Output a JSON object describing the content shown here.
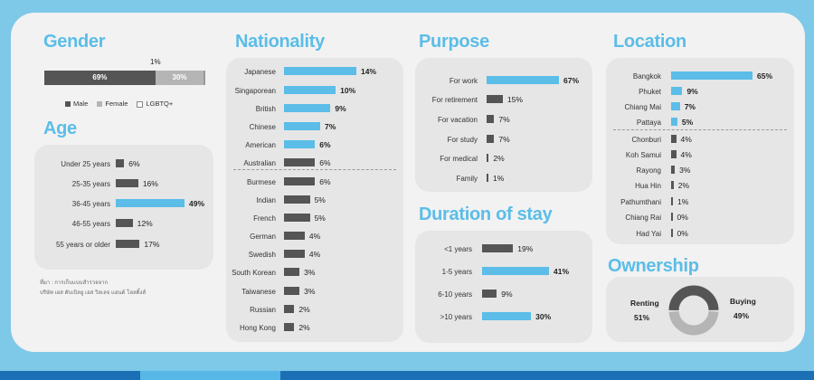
{
  "colors": {
    "blue": "#5bbde8",
    "gray": "#555555",
    "light": "#b5b5b5"
  },
  "gender": {
    "title": "Gender",
    "top_label": "1%",
    "legend": [
      "Male",
      "Female",
      "LGBTQ+"
    ]
  },
  "age": {
    "title": "Age"
  },
  "nationality": {
    "title": "Nationality"
  },
  "purpose": {
    "title": "Purpose"
  },
  "duration": {
    "title": "Duration of stay"
  },
  "location": {
    "title": "Location"
  },
  "ownership": {
    "title": "Ownership"
  },
  "source_note": [
    "ที่มา : การเก็บแบบสำรวจจาก",
    "บริษัท เอส ดับเบิลยู เอส วิลเลจ แอนด์ โฮลดิ้งส์"
  ],
  "chart_data": [
    {
      "id": "gender",
      "type": "bar",
      "categories": [
        "Male",
        "Female",
        "LGBTQ+"
      ],
      "values": [
        69,
        30,
        1
      ],
      "labels": [
        "69%",
        "30%",
        "1%"
      ]
    },
    {
      "id": "age",
      "type": "bar",
      "categories": [
        "Under 25 years",
        "25-35 years",
        "36-45 years",
        "46-55 years",
        "55 years or older"
      ],
      "values": [
        6,
        16,
        49,
        12,
        17
      ],
      "labels": [
        "6%",
        "16%",
        "49%",
        "12%",
        "17%"
      ],
      "highlight": [
        2
      ],
      "max": 49
    },
    {
      "id": "nationality",
      "type": "bar",
      "categories": [
        "Japanese",
        "Singaporean",
        "British",
        "Chinese",
        "American",
        "Australian",
        "Burmese",
        "Indian",
        "French",
        "German",
        "Swedish",
        "South Korean",
        "Taiwanese",
        "Russian",
        "Hong Kong"
      ],
      "values": [
        14,
        10,
        9,
        7,
        6,
        6,
        6,
        5,
        5,
        4,
        4,
        3,
        3,
        2,
        2
      ],
      "labels": [
        "14%",
        "10%",
        "9%",
        "7%",
        "6%",
        "6%",
        "6%",
        "5%",
        "5%",
        "4%",
        "4%",
        "3%",
        "3%",
        "2%",
        "2%"
      ],
      "highlight": [
        0,
        1,
        2,
        3,
        4
      ],
      "max": 14
    },
    {
      "id": "purpose",
      "type": "bar",
      "categories": [
        "For work",
        "For retirement",
        "For vacation",
        "For study",
        "For medical",
        "Family"
      ],
      "values": [
        67,
        15,
        7,
        7,
        2,
        1
      ],
      "labels": [
        "67%",
        "15%",
        "7%",
        "7%",
        "2%",
        "1%"
      ],
      "highlight": [
        0
      ],
      "max": 67
    },
    {
      "id": "duration",
      "type": "bar",
      "categories": [
        "<1 years",
        "1-5 years",
        "6-10 years",
        ">10 years"
      ],
      "values": [
        19,
        41,
        9,
        30
      ],
      "labels": [
        "19%",
        "41%",
        "9%",
        "30%"
      ],
      "highlight": [
        1,
        3
      ],
      "max": 41
    },
    {
      "id": "location",
      "type": "bar",
      "categories": [
        "Bangkok",
        "Phuket",
        "Chiang Mai",
        "Pattaya",
        "Chonburi",
        "Koh Samui",
        "Rayong",
        "Hua Hin",
        "Pathumthani",
        "Chiang Rai",
        "Had Yai"
      ],
      "values": [
        65,
        9,
        7,
        5,
        4,
        4,
        3,
        2,
        1,
        0,
        0
      ],
      "labels": [
        "65%",
        "9%",
        "7%",
        "5%",
        "4%",
        "4%",
        "3%",
        "2%",
        "1%",
        "0%",
        "0%"
      ],
      "highlight": [
        0,
        1,
        2,
        3
      ],
      "max": 65
    },
    {
      "id": "ownership",
      "type": "pie",
      "categories": [
        "Renting",
        "Buying"
      ],
      "values": [
        51,
        49
      ],
      "labels": [
        "51%",
        "49%"
      ]
    }
  ]
}
